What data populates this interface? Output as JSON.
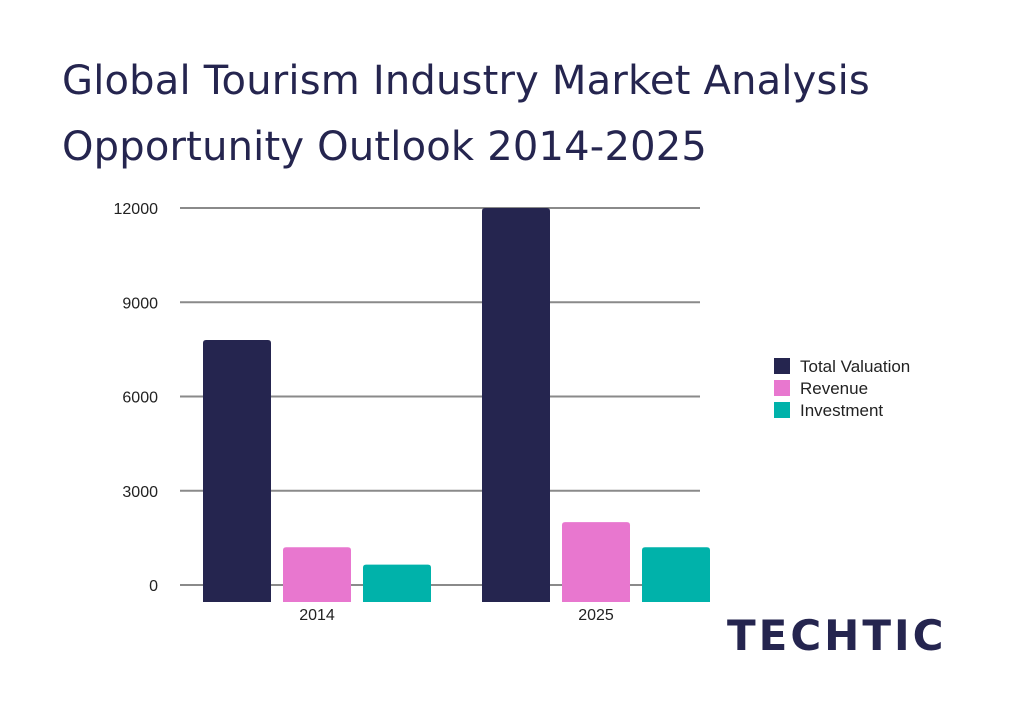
{
  "title_lines": [
    "Global Tourism Industry Market Analysis",
    "Opportunity Outlook 2014-2025"
  ],
  "brand": "TECHTIC",
  "chart_data": {
    "type": "bar",
    "title": "Global Tourism Industry Market Analysis Opportunity Outlook 2014-2025",
    "categories": [
      "2014",
      "2025"
    ],
    "series": [
      {
        "name": "Total Valuation",
        "color": "#25254f",
        "values": [
          7800,
          12000
        ]
      },
      {
        "name": "Revenue",
        "color": "#e877cf",
        "values": [
          1200,
          2000
        ]
      },
      {
        "name": "Investment",
        "color": "#00b2aa",
        "values": [
          650,
          1200
        ]
      }
    ],
    "yticks": [
      0,
      3000,
      6000,
      9000,
      12000
    ],
    "ylim": [
      0,
      12000
    ],
    "grid": true,
    "legend": "right"
  }
}
